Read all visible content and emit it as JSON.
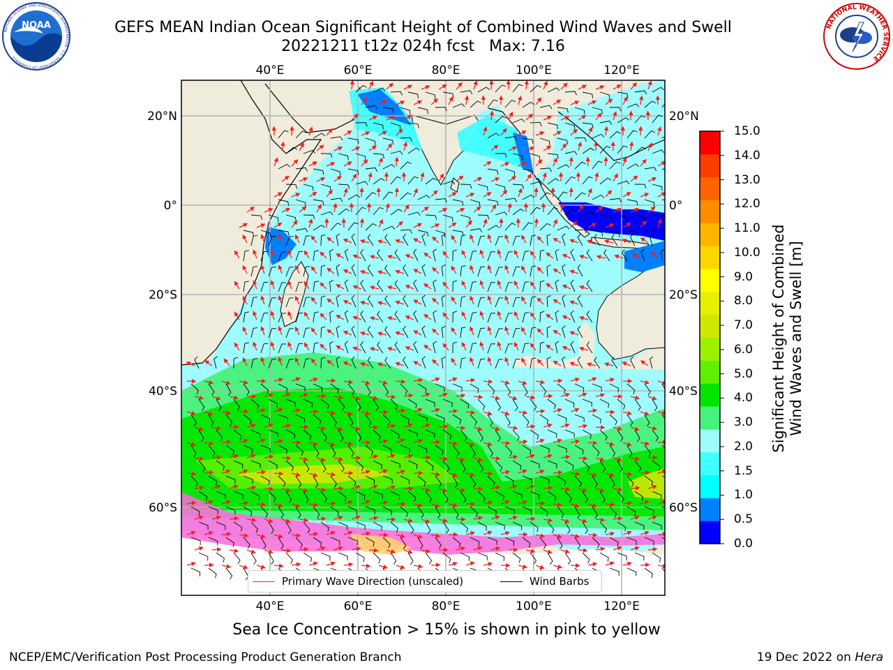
{
  "title": {
    "line1": "GEFS MEAN Indian Ocean Significant Height of Combined Wind Waves and Swell",
    "line2": "20221211 t12z 024h fcst   Max: 7.16"
  },
  "logos": {
    "left": {
      "text": "NOAA",
      "ring_text": "NATIONAL OCEANIC AND ATMOSPHERIC ADMINISTRATION · U.S. DEPARTMENT OF COMMERCE"
    },
    "right": {
      "text": "NATIONAL WEATHER SERVICE"
    }
  },
  "map": {
    "lon_labels": [
      "40°E",
      "60°E",
      "80°E",
      "100°E",
      "120°E"
    ],
    "lat_labels": [
      "20°N",
      "0°",
      "20°S",
      "40°S",
      "60°S"
    ],
    "lon_values": [
      40,
      60,
      80,
      100,
      120
    ],
    "lat_values": [
      20,
      0,
      -20,
      -40,
      -60
    ],
    "lon_range": [
      20,
      130
    ],
    "lat_range": [
      -70,
      27.5
    ],
    "colors": {
      "land": "#efecdc",
      "ocean_base": "#9ffcfc",
      "grid": "#b3b3b3",
      "arrows": "#ff1a1a",
      "barbs": "#000000"
    }
  },
  "colorbar": {
    "ticks": [
      "15.0",
      "14.0",
      "13.0",
      "12.0",
      "11.0",
      "10.0",
      "9.0",
      "8.0",
      "7.0",
      "6.0",
      "5.0",
      "4.0",
      "3.0",
      "2.0",
      "1.5",
      "1.0",
      "0.5",
      "0.0"
    ],
    "label_line1": "Significant Height of Combined",
    "label_line2": "Wind Waves and Swell [m]",
    "colors": [
      "#0000ff",
      "#0080ff",
      "#00ffff",
      "#40ffff",
      "#9ffcfc",
      "#46f279",
      "#00e600",
      "#5ef000",
      "#9df000",
      "#cfe800",
      "#e6f000",
      "#ffff00",
      "#ffd700",
      "#ffb400",
      "#ff8c00",
      "#ff6400",
      "#ff3c00",
      "#ff0000"
    ]
  },
  "legend": {
    "wave_direction": "Primary Wave Direction (unscaled)",
    "wind_barbs": "Wind Barbs"
  },
  "footnote": "Sea Ice Concentration > 15% is shown in pink to yellow",
  "footer": {
    "left": "NCEP/EMC/Verification Post Processing Product Generation Branch",
    "right_prefix": "19 Dec 2022 on ",
    "right_host": "Hera"
  }
}
